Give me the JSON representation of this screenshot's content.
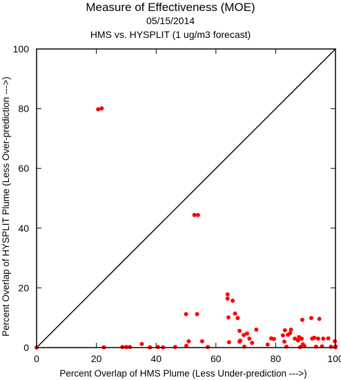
{
  "chart_data": {
    "type": "scatter",
    "title": "Measure of Effectiveness (MOE)",
    "subtitle_date": "05/15/2014",
    "subtitle": "HMS vs. HYSPLIT  (1 ug/m3 forecast)",
    "xlabel": "Percent Overlap of HMS Plume (Less Under-prediction --->)",
    "ylabel": "Percent Overlap of HYSPLIT Plume (Less Over-prediction --->)",
    "xlim": [
      0,
      100
    ],
    "ylim": [
      0,
      100
    ],
    "xticks": [
      "0",
      "20",
      "40",
      "60",
      "80",
      "100"
    ],
    "yticks": [
      "0",
      "20",
      "40",
      "60",
      "80",
      "100"
    ],
    "grid": false,
    "reference_line": "diagonal y = x",
    "colors": {
      "points": "#ff0000",
      "line": "#000000"
    },
    "points": [
      [
        0,
        0
      ],
      [
        20.6,
        79.8
      ],
      [
        21.8,
        80.1
      ],
      [
        22.5,
        0.1
      ],
      [
        28.7,
        0.2
      ],
      [
        30.0,
        0.2
      ],
      [
        31.2,
        0.2
      ],
      [
        35.2,
        1.2
      ],
      [
        37.9,
        0.1
      ],
      [
        40.6,
        0.2
      ],
      [
        42.3,
        0.1
      ],
      [
        46.4,
        0.2
      ],
      [
        50.0,
        11.2
      ],
      [
        50.1,
        0.6
      ],
      [
        50.9,
        2.1
      ],
      [
        52.8,
        44.4
      ],
      [
        54.0,
        44.4
      ],
      [
        53.7,
        11.2
      ],
      [
        55.4,
        2.1
      ],
      [
        57.3,
        0.2
      ],
      [
        63.9,
        17.8
      ],
      [
        63.9,
        16.4
      ],
      [
        64.2,
        10.1
      ],
      [
        64.4,
        1.8
      ],
      [
        65.6,
        15.7
      ],
      [
        66.4,
        11.4
      ],
      [
        67.3,
        9.9
      ],
      [
        67.9,
        5.6
      ],
      [
        67.9,
        2.0
      ],
      [
        68.1,
        2.3
      ],
      [
        69.3,
        4.2
      ],
      [
        69.5,
        0.3
      ],
      [
        70.4,
        4.7
      ],
      [
        71.2,
        3.0
      ],
      [
        72.1,
        1.6
      ],
      [
        73.5,
        6.0
      ],
      [
        77.3,
        1.0
      ],
      [
        78.5,
        3.1
      ],
      [
        79.4,
        2.9
      ],
      [
        82.4,
        4.1
      ],
      [
        82.9,
        2.0
      ],
      [
        83.1,
        5.8
      ],
      [
        83.6,
        0.3
      ],
      [
        84.1,
        4.3
      ],
      [
        84.8,
        4.8
      ],
      [
        85.1,
        6.0
      ],
      [
        86.4,
        3.0
      ],
      [
        87.5,
        2.4
      ],
      [
        87.8,
        3.5
      ],
      [
        88.2,
        0.2
      ],
      [
        88.7,
        3.0
      ],
      [
        88.9,
        9.3
      ],
      [
        89.1,
        1.1
      ],
      [
        89.6,
        0.5
      ],
      [
        91.9,
        9.9
      ],
      [
        92.2,
        3.0
      ],
      [
        92.9,
        3.3
      ],
      [
        93.5,
        0.3
      ],
      [
        94.2,
        3.0
      ],
      [
        94.6,
        9.6
      ],
      [
        95.5,
        0.4
      ],
      [
        95.9,
        3.0
      ],
      [
        97.6,
        3.1
      ],
      [
        98.5,
        0.3
      ],
      [
        99.8,
        2.1
      ],
      [
        100,
        0.4
      ],
      [
        100,
        0.1
      ]
    ]
  }
}
